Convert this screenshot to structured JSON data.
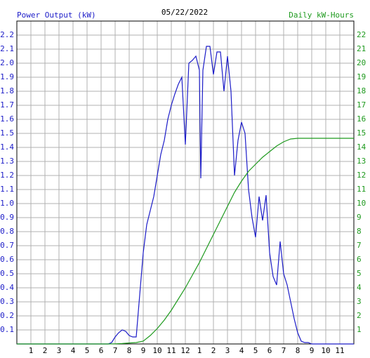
{
  "chart_data": {
    "type": "line",
    "title": "05/22/2022",
    "y_label": "Power Output (kW)",
    "y2_label": "Daily kW-Hours",
    "xlim": [
      0,
      24
    ],
    "xticks": [
      1,
      2,
      3,
      4,
      5,
      6,
      7,
      8,
      9,
      10,
      11,
      12,
      {
        "value": 13,
        "label": "1"
      },
      {
        "value": 14,
        "label": "2"
      },
      {
        "value": 15,
        "label": "3"
      },
      {
        "value": 16,
        "label": "4"
      },
      {
        "value": 17,
        "label": "5"
      },
      {
        "value": 18,
        "label": "6"
      },
      {
        "value": 19,
        "label": "7"
      },
      {
        "value": 20,
        "label": "8"
      },
      {
        "value": 21,
        "label": "9"
      },
      {
        "value": 22,
        "label": "10"
      },
      {
        "value": 23,
        "label": "11"
      }
    ],
    "ylim": [
      0,
      2.3
    ],
    "yticks": [
      0.1,
      0.2,
      0.3,
      0.4,
      0.5,
      0.6,
      0.7,
      0.8,
      0.9,
      {
        "value": 1,
        "label": "1.0"
      },
      1.1,
      1.2,
      1.3,
      1.4,
      1.5,
      1.6,
      1.7,
      1.8,
      1.9,
      {
        "value": 2,
        "label": "2.0"
      },
      2.1,
      2.2
    ],
    "y2lim": [
      0,
      23
    ],
    "y2ticks": [
      1,
      2,
      3,
      4,
      5,
      6,
      7,
      8,
      9,
      10,
      11,
      12,
      13,
      14,
      15,
      16,
      17,
      18,
      19,
      20,
      21,
      22
    ],
    "grid": true,
    "series": [
      {
        "name": "Power Output (kW)",
        "color": "#1c1cc8",
        "x": [
          0,
          6.5,
          6.75,
          7.0,
          7.25,
          7.5,
          7.75,
          8.0,
          8.25,
          8.5,
          8.75,
          9.0,
          9.25,
          9.5,
          9.75,
          10.0,
          10.25,
          10.5,
          10.75,
          11.0,
          11.25,
          11.5,
          11.75,
          12.0,
          12.25,
          12.5,
          12.75,
          13.0,
          13.1,
          13.25,
          13.5,
          13.75,
          14.0,
          14.25,
          14.5,
          14.75,
          15.0,
          15.25,
          15.5,
          15.75,
          16.0,
          16.25,
          16.5,
          16.75,
          17.0,
          17.25,
          17.5,
          17.75,
          18.0,
          18.25,
          18.5,
          18.75,
          19.0,
          19.25,
          19.5,
          19.75,
          20.0,
          20.25,
          20.5,
          20.75,
          21.0,
          24
        ],
        "values": [
          0,
          0,
          0.01,
          0.05,
          0.08,
          0.1,
          0.09,
          0.06,
          0.05,
          0.05,
          0.35,
          0.65,
          0.85,
          0.95,
          1.05,
          1.2,
          1.35,
          1.45,
          1.6,
          1.7,
          1.78,
          1.85,
          1.9,
          1.42,
          2.0,
          2.02,
          2.05,
          1.95,
          1.18,
          1.95,
          2.12,
          2.12,
          1.92,
          2.08,
          2.08,
          1.8,
          2.05,
          1.8,
          1.2,
          1.45,
          1.58,
          1.5,
          1.1,
          0.9,
          0.76,
          1.05,
          0.88,
          1.06,
          0.65,
          0.48,
          0.42,
          0.73,
          0.5,
          0.42,
          0.3,
          0.18,
          0.08,
          0.02,
          0.01,
          0.01,
          0,
          0
        ]
      },
      {
        "name": "Daily kW-Hours",
        "color": "#1e9a1e",
        "axis": "y2",
        "x": [
          0,
          6.5,
          7,
          7.5,
          8,
          8.5,
          9,
          9.5,
          10,
          10.5,
          11,
          11.5,
          12,
          12.5,
          13,
          13.5,
          14,
          14.5,
          15,
          15.5,
          16,
          16.5,
          17,
          17.5,
          18,
          18.5,
          19,
          19.5,
          20,
          24
        ],
        "values": [
          0,
          0,
          0.01,
          0.03,
          0.07,
          0.1,
          0.2,
          0.6,
          1.1,
          1.7,
          2.4,
          3.2,
          4.0,
          4.9,
          5.8,
          6.8,
          7.8,
          8.8,
          9.8,
          10.8,
          11.6,
          12.3,
          12.8,
          13.3,
          13.7,
          14.1,
          14.4,
          14.6,
          14.65,
          14.65
        ]
      }
    ]
  }
}
